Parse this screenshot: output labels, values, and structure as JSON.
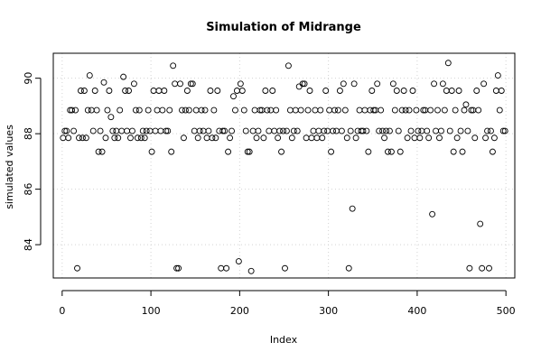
{
  "chart_data": {
    "type": "scatter",
    "title": "Simulation of Midrange",
    "xlabel": "Index",
    "ylabel": "simulated values",
    "xlim": [
      -10,
      510
    ],
    "ylim": [
      82.8,
      90.9
    ],
    "xticks": [
      0,
      100,
      200,
      300,
      400,
      500
    ],
    "yticks": [
      84,
      86,
      88,
      90
    ],
    "grid": true,
    "point_color": "#000000",
    "points": [
      [
        1,
        87.85
      ],
      [
        3,
        88.1
      ],
      [
        5,
        88.1
      ],
      [
        7,
        87.85
      ],
      [
        9,
        88.85
      ],
      [
        11,
        88.85
      ],
      [
        13,
        88.1
      ],
      [
        15,
        88.85
      ],
      [
        17,
        83.15
      ],
      [
        19,
        87.85
      ],
      [
        21,
        89.55
      ],
      [
        23,
        87.85
      ],
      [
        25,
        89.55
      ],
      [
        27,
        87.85
      ],
      [
        29,
        88.85
      ],
      [
        31,
        90.1
      ],
      [
        33,
        88.85
      ],
      [
        35,
        88.1
      ],
      [
        37,
        89.55
      ],
      [
        39,
        88.85
      ],
      [
        41,
        87.35
      ],
      [
        43,
        88.1
      ],
      [
        45,
        87.35
      ],
      [
        47,
        89.85
      ],
      [
        49,
        87.85
      ],
      [
        51,
        88.85
      ],
      [
        53,
        89.55
      ],
      [
        55,
        88.6
      ],
      [
        57,
        88.1
      ],
      [
        59,
        87.85
      ],
      [
        61,
        88.1
      ],
      [
        63,
        87.85
      ],
      [
        65,
        88.85
      ],
      [
        67,
        88.1
      ],
      [
        69,
        90.05
      ],
      [
        71,
        89.55
      ],
      [
        73,
        88.1
      ],
      [
        75,
        89.55
      ],
      [
        77,
        87.85
      ],
      [
        79,
        88.1
      ],
      [
        81,
        89.8
      ],
      [
        83,
        88.85
      ],
      [
        85,
        87.85
      ],
      [
        87,
        88.85
      ],
      [
        89,
        87.85
      ],
      [
        91,
        88.1
      ],
      [
        93,
        87.85
      ],
      [
        95,
        88.1
      ],
      [
        97,
        88.85
      ],
      [
        99,
        88.1
      ],
      [
        101,
        87.35
      ],
      [
        103,
        89.55
      ],
      [
        105,
        88.1
      ],
      [
        107,
        88.85
      ],
      [
        109,
        89.55
      ],
      [
        111,
        88.1
      ],
      [
        113,
        88.85
      ],
      [
        115,
        89.55
      ],
      [
        117,
        88.1
      ],
      [
        119,
        88.1
      ],
      [
        121,
        88.85
      ],
      [
        123,
        87.35
      ],
      [
        125,
        90.45
      ],
      [
        127,
        89.8
      ],
      [
        129,
        83.15
      ],
      [
        131,
        83.15
      ],
      [
        133,
        89.8
      ],
      [
        135,
        88.85
      ],
      [
        137,
        87.85
      ],
      [
        139,
        88.85
      ],
      [
        141,
        89.55
      ],
      [
        143,
        88.85
      ],
      [
        145,
        89.8
      ],
      [
        147,
        89.8
      ],
      [
        149,
        88.1
      ],
      [
        151,
        88.85
      ],
      [
        153,
        87.85
      ],
      [
        155,
        88.1
      ],
      [
        157,
        88.85
      ],
      [
        159,
        88.1
      ],
      [
        161,
        88.85
      ],
      [
        163,
        87.85
      ],
      [
        165,
        88.1
      ],
      [
        167,
        89.55
      ],
      [
        169,
        87.85
      ],
      [
        171,
        88.85
      ],
      [
        173,
        87.85
      ],
      [
        175,
        89.55
      ],
      [
        177,
        88.1
      ],
      [
        179,
        83.15
      ],
      [
        181,
        88.1
      ],
      [
        183,
        88.1
      ],
      [
        185,
        83.15
      ],
      [
        187,
        87.35
      ],
      [
        189,
        87.85
      ],
      [
        191,
        88.1
      ],
      [
        193,
        89.35
      ],
      [
        195,
        88.85
      ],
      [
        197,
        89.55
      ],
      [
        199,
        83.4
      ],
      [
        201,
        89.8
      ],
      [
        203,
        89.55
      ],
      [
        205,
        88.85
      ],
      [
        207,
        88.1
      ],
      [
        209,
        87.35
      ],
      [
        211,
        87.35
      ],
      [
        213,
        83.05
      ],
      [
        215,
        88.1
      ],
      [
        217,
        88.85
      ],
      [
        219,
        87.85
      ],
      [
        221,
        88.1
      ],
      [
        223,
        88.85
      ],
      [
        225,
        88.85
      ],
      [
        227,
        87.85
      ],
      [
        229,
        89.55
      ],
      [
        231,
        88.85
      ],
      [
        233,
        88.1
      ],
      [
        235,
        88.85
      ],
      [
        237,
        89.55
      ],
      [
        239,
        88.1
      ],
      [
        241,
        88.85
      ],
      [
        243,
        87.85
      ],
      [
        245,
        88.1
      ],
      [
        247,
        87.35
      ],
      [
        249,
        88.1
      ],
      [
        251,
        83.15
      ],
      [
        253,
        88.1
      ],
      [
        255,
        90.45
      ],
      [
        257,
        88.85
      ],
      [
        259,
        87.85
      ],
      [
        261,
        88.1
      ],
      [
        263,
        88.85
      ],
      [
        265,
        88.1
      ],
      [
        267,
        89.7
      ],
      [
        269,
        88.85
      ],
      [
        271,
        89.8
      ],
      [
        273,
        89.8
      ],
      [
        275,
        87.85
      ],
      [
        277,
        88.85
      ],
      [
        279,
        89.55
      ],
      [
        281,
        87.85
      ],
      [
        283,
        88.1
      ],
      [
        285,
        88.85
      ],
      [
        287,
        87.85
      ],
      [
        289,
        88.1
      ],
      [
        291,
        88.85
      ],
      [
        293,
        87.85
      ],
      [
        295,
        88.1
      ],
      [
        297,
        89.55
      ],
      [
        299,
        88.1
      ],
      [
        301,
        88.85
      ],
      [
        303,
        87.35
      ],
      [
        305,
        88.1
      ],
      [
        307,
        88.85
      ],
      [
        309,
        88.1
      ],
      [
        311,
        88.85
      ],
      [
        313,
        89.55
      ],
      [
        315,
        88.1
      ],
      [
        317,
        89.8
      ],
      [
        319,
        88.85
      ],
      [
        321,
        87.85
      ],
      [
        323,
        83.15
      ],
      [
        325,
        88.1
      ],
      [
        327,
        85.3
      ],
      [
        329,
        89.8
      ],
      [
        331,
        87.85
      ],
      [
        333,
        88.1
      ],
      [
        335,
        88.85
      ],
      [
        337,
        88.1
      ],
      [
        339,
        88.1
      ],
      [
        341,
        88.85
      ],
      [
        343,
        88.1
      ],
      [
        345,
        87.35
      ],
      [
        347,
        88.85
      ],
      [
        349,
        89.55
      ],
      [
        351,
        88.85
      ],
      [
        353,
        88.85
      ],
      [
        355,
        89.8
      ],
      [
        357,
        88.1
      ],
      [
        359,
        88.85
      ],
      [
        361,
        88.1
      ],
      [
        363,
        87.85
      ],
      [
        365,
        88.1
      ],
      [
        367,
        87.35
      ],
      [
        369,
        88.1
      ],
      [
        371,
        87.35
      ],
      [
        373,
        89.8
      ],
      [
        375,
        88.85
      ],
      [
        377,
        89.55
      ],
      [
        379,
        88.1
      ],
      [
        381,
        87.35
      ],
      [
        383,
        88.85
      ],
      [
        385,
        89.55
      ],
      [
        387,
        88.85
      ],
      [
        389,
        87.85
      ],
      [
        391,
        88.85
      ],
      [
        393,
        88.1
      ],
      [
        395,
        89.55
      ],
      [
        397,
        87.85
      ],
      [
        399,
        88.85
      ],
      [
        401,
        88.1
      ],
      [
        403,
        87.85
      ],
      [
        405,
        88.1
      ],
      [
        407,
        88.85
      ],
      [
        409,
        88.85
      ],
      [
        411,
        88.1
      ],
      [
        413,
        87.85
      ],
      [
        415,
        88.85
      ],
      [
        417,
        85.1
      ],
      [
        419,
        89.8
      ],
      [
        421,
        88.1
      ],
      [
        423,
        88.85
      ],
      [
        425,
        87.85
      ],
      [
        427,
        88.1
      ],
      [
        429,
        89.8
      ],
      [
        431,
        88.85
      ],
      [
        433,
        89.55
      ],
      [
        435,
        90.55
      ],
      [
        437,
        88.1
      ],
      [
        439,
        89.55
      ],
      [
        441,
        87.35
      ],
      [
        443,
        88.85
      ],
      [
        445,
        87.85
      ],
      [
        447,
        89.55
      ],
      [
        449,
        88.1
      ],
      [
        451,
        87.35
      ],
      [
        453,
        88.85
      ],
      [
        455,
        89.05
      ],
      [
        457,
        88.1
      ],
      [
        459,
        83.15
      ],
      [
        461,
        88.85
      ],
      [
        463,
        88.85
      ],
      [
        465,
        87.85
      ],
      [
        467,
        89.55
      ],
      [
        469,
        88.85
      ],
      [
        471,
        84.75
      ],
      [
        473,
        83.15
      ],
      [
        475,
        89.8
      ],
      [
        477,
        87.85
      ],
      [
        479,
        88.1
      ],
      [
        481,
        83.15
      ],
      [
        483,
        88.1
      ],
      [
        485,
        87.35
      ],
      [
        487,
        87.85
      ],
      [
        489,
        89.55
      ],
      [
        491,
        90.1
      ],
      [
        493,
        88.85
      ],
      [
        495,
        89.55
      ],
      [
        497,
        88.1
      ],
      [
        499,
        88.1
      ]
    ]
  }
}
